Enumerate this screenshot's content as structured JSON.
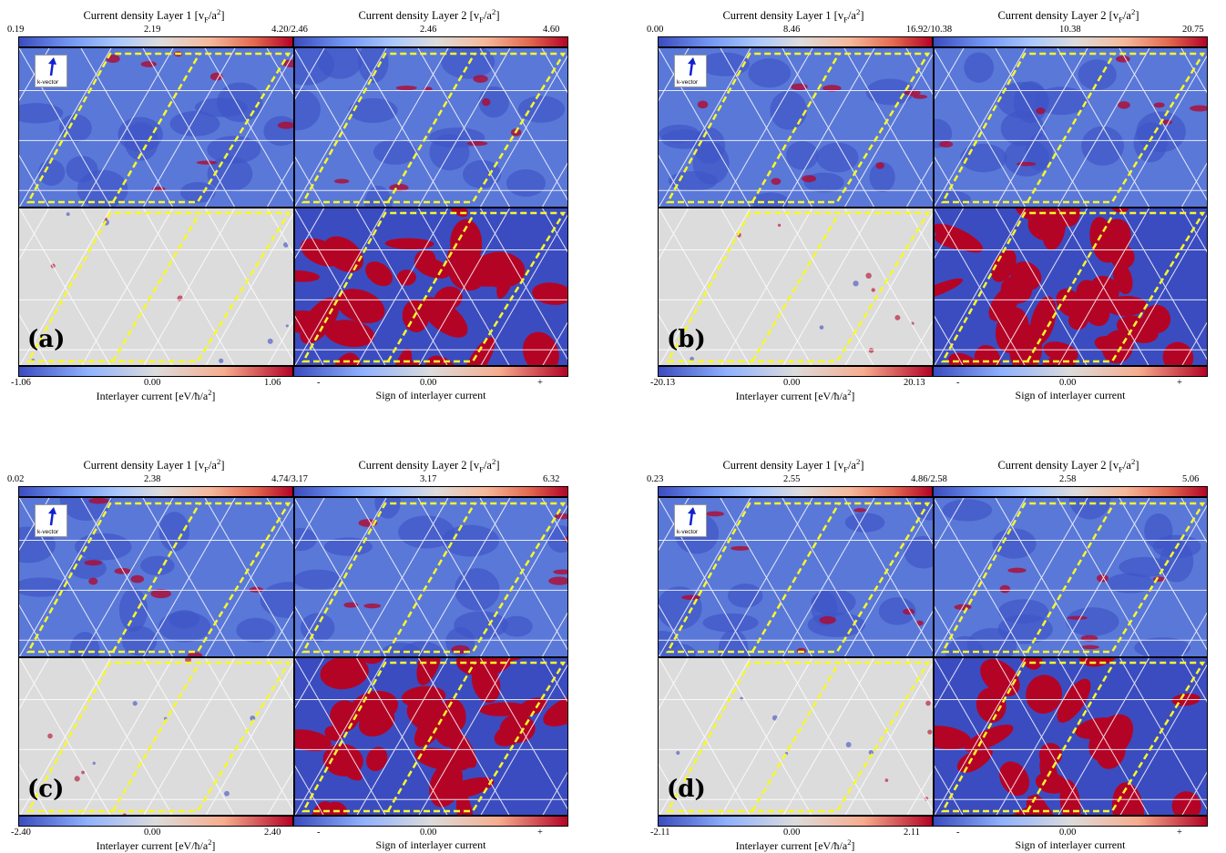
{
  "common": {
    "title_layer1": "Current density Layer 1 [v",
    "title_layer2": "Current density Layer 2 [v",
    "title_sub": "F",
    "title_tail": "/a",
    "title_sup": "2",
    "title_close": "]",
    "xlabel_interlayer": "Interlayer current [eV/ħ/a",
    "xlabel_sign": "Sign of interlayer current",
    "sign_minus": "-",
    "sign_zero": "0.00",
    "sign_plus": "+",
    "kvector_label": "k-vector"
  },
  "colors": {
    "blue": "#3b4cc0",
    "mid_blue": "#5a78d8",
    "red": "#b40426",
    "gray": "#dcdcdc",
    "yellow": "#f7f72a",
    "arrow_blue": "#1020d0"
  },
  "panels": [
    {
      "id": "a",
      "label": "(a)",
      "l1_min": "0.19",
      "l1_mid": "2.19",
      "l2_left": "4.20/2.46",
      "l2_mid": "2.46",
      "l2_max": "4.60",
      "il_min": "-1.06",
      "il_mid": "0.00",
      "il_max": "1.06"
    },
    {
      "id": "b",
      "label": "(b)",
      "l1_min": "0.00",
      "l1_mid": "8.46",
      "l2_left": "16.92/10.38",
      "l2_mid": "10.38",
      "l2_max": "20.75",
      "il_min": "-20.13",
      "il_mid": "0.00",
      "il_max": "20.13"
    },
    {
      "id": "c",
      "label": "(c)",
      "l1_min": "0.02",
      "l1_mid": "2.38",
      "l2_left": "4.74/3.17",
      "l2_mid": "3.17",
      "l2_max": "6.32",
      "il_min": "-2.40",
      "il_mid": "0.00",
      "il_max": "2.40"
    },
    {
      "id": "d",
      "label": "(d)",
      "l1_min": "0.23",
      "l1_mid": "2.55",
      "l2_left": "4.86/2.58",
      "l2_mid": "2.58",
      "l2_max": "5.06",
      "il_min": "-2.11",
      "il_mid": "0.00",
      "il_max": "2.11"
    }
  ]
}
